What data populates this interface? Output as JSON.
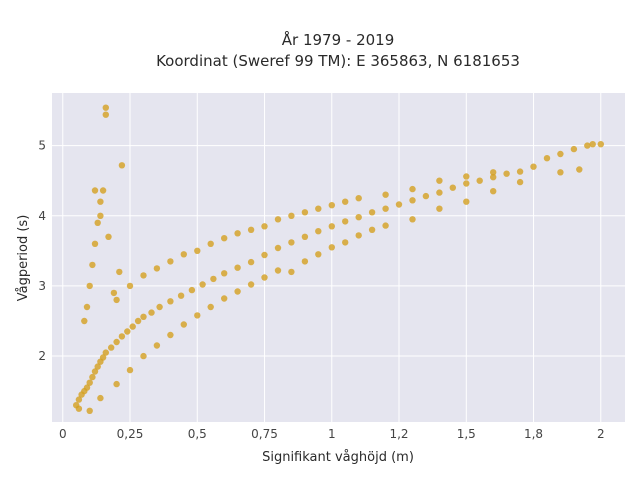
{
  "chart_data": {
    "type": "scatter",
    "title": "År 1979 - 2019",
    "subtitle": "Koordinat (Sweref 99 TM): E 365863, N 6181653",
    "xlabel": "Signifikant våghöjd (m)",
    "ylabel": "Vågperiod (s)",
    "xlim": [
      -0.04,
      2.09
    ],
    "ylim": [
      1.06,
      5.75
    ],
    "x_ticks": [
      0,
      0.25,
      0.5,
      0.75,
      1,
      1.25,
      1.5,
      1.75,
      2
    ],
    "x_tick_labels": [
      "0",
      "0,25",
      "0,5",
      "0,75",
      "1",
      "1,2",
      "1,5",
      "1,8",
      "2"
    ],
    "y_ticks": [
      2,
      3,
      4,
      5
    ],
    "y_tick_labels": [
      "2",
      "3",
      "4",
      "5"
    ],
    "grid": true,
    "legend": "none",
    "colors": {
      "points": "#d4a020",
      "plot_bg": "#e5e5ef",
      "grid": "#ffffff"
    },
    "series": [
      {
        "values": [
          [
            0.05,
            1.3
          ],
          [
            0.06,
            1.38
          ],
          [
            0.07,
            1.45
          ],
          [
            0.08,
            1.5
          ],
          [
            0.09,
            1.55
          ],
          [
            0.1,
            1.62
          ],
          [
            0.11,
            1.7
          ],
          [
            0.12,
            1.78
          ],
          [
            0.13,
            1.85
          ],
          [
            0.14,
            1.92
          ],
          [
            0.15,
            1.98
          ],
          [
            0.16,
            2.05
          ],
          [
            0.18,
            2.12
          ],
          [
            0.2,
            2.2
          ],
          [
            0.22,
            2.28
          ],
          [
            0.24,
            2.35
          ],
          [
            0.26,
            2.42
          ],
          [
            0.28,
            2.5
          ],
          [
            0.3,
            2.56
          ],
          [
            0.33,
            2.62
          ],
          [
            0.36,
            2.7
          ],
          [
            0.4,
            2.78
          ],
          [
            0.44,
            2.86
          ],
          [
            0.48,
            2.94
          ],
          [
            0.52,
            3.02
          ],
          [
            0.56,
            3.1
          ],
          [
            0.6,
            3.18
          ],
          [
            0.65,
            3.26
          ],
          [
            0.7,
            3.34
          ],
          [
            0.75,
            3.44
          ],
          [
            0.8,
            3.54
          ],
          [
            0.85,
            3.62
          ],
          [
            0.9,
            3.7
          ],
          [
            0.95,
            3.78
          ],
          [
            1.0,
            3.85
          ],
          [
            1.05,
            3.92
          ],
          [
            1.1,
            3.98
          ],
          [
            1.15,
            4.05
          ],
          [
            1.2,
            4.1
          ],
          [
            1.25,
            4.16
          ],
          [
            1.3,
            4.22
          ],
          [
            1.35,
            4.28
          ],
          [
            1.4,
            4.33
          ],
          [
            1.45,
            4.4
          ],
          [
            1.5,
            4.46
          ],
          [
            1.55,
            4.5
          ],
          [
            1.6,
            4.55
          ],
          [
            1.65,
            4.6
          ],
          [
            1.7,
            4.63
          ],
          [
            1.75,
            4.7
          ],
          [
            1.8,
            4.82
          ],
          [
            1.85,
            4.88
          ],
          [
            1.9,
            4.95
          ],
          [
            1.95,
            5.0
          ],
          [
            2.0,
            5.02
          ],
          [
            0.08,
            2.5
          ],
          [
            0.09,
            2.7
          ],
          [
            0.1,
            3.0
          ],
          [
            0.11,
            3.3
          ],
          [
            0.12,
            3.6
          ],
          [
            0.13,
            3.9
          ],
          [
            0.14,
            4.2
          ],
          [
            0.15,
            4.36
          ],
          [
            0.12,
            4.36
          ],
          [
            0.14,
            4.0
          ],
          [
            0.17,
            3.7
          ],
          [
            0.16,
            5.44
          ],
          [
            0.16,
            5.54
          ],
          [
            0.22,
            4.72
          ],
          [
            0.21,
            3.2
          ],
          [
            0.19,
            2.9
          ],
          [
            0.06,
            1.25
          ],
          [
            0.1,
            1.22
          ],
          [
            0.14,
            1.4
          ],
          [
            0.2,
            1.6
          ],
          [
            0.25,
            1.8
          ],
          [
            0.3,
            2.0
          ],
          [
            0.35,
            2.15
          ],
          [
            0.4,
            2.3
          ],
          [
            0.45,
            2.45
          ],
          [
            0.5,
            2.58
          ],
          [
            0.55,
            2.7
          ],
          [
            0.6,
            2.82
          ],
          [
            0.65,
            2.92
          ],
          [
            0.7,
            3.02
          ],
          [
            0.75,
            3.12
          ],
          [
            0.8,
            3.22
          ],
          [
            0.2,
            2.8
          ],
          [
            0.25,
            3.0
          ],
          [
            0.3,
            3.15
          ],
          [
            0.35,
            3.25
          ],
          [
            0.4,
            3.35
          ],
          [
            0.45,
            3.45
          ],
          [
            0.5,
            3.5
          ],
          [
            0.55,
            3.6
          ],
          [
            0.6,
            3.68
          ],
          [
            0.65,
            3.75
          ],
          [
            0.7,
            3.8
          ],
          [
            0.75,
            3.85
          ],
          [
            0.8,
            3.95
          ],
          [
            0.85,
            4.0
          ],
          [
            0.9,
            4.05
          ],
          [
            0.95,
            4.1
          ],
          [
            1.0,
            4.15
          ],
          [
            1.05,
            4.2
          ],
          [
            1.1,
            4.25
          ],
          [
            1.2,
            4.3
          ],
          [
            1.3,
            4.38
          ],
          [
            1.4,
            4.5
          ],
          [
            1.5,
            4.56
          ],
          [
            1.6,
            4.62
          ],
          [
            0.85,
            3.2
          ],
          [
            0.9,
            3.35
          ],
          [
            0.95,
            3.45
          ],
          [
            1.0,
            3.55
          ],
          [
            1.05,
            3.62
          ],
          [
            1.1,
            3.72
          ],
          [
            1.15,
            3.8
          ],
          [
            1.2,
            3.86
          ],
          [
            1.3,
            3.95
          ],
          [
            1.4,
            4.1
          ],
          [
            1.5,
            4.2
          ],
          [
            1.6,
            4.35
          ],
          [
            1.7,
            4.48
          ],
          [
            1.85,
            4.62
          ],
          [
            1.92,
            4.66
          ],
          [
            1.97,
            5.02
          ]
        ]
      }
    ]
  }
}
